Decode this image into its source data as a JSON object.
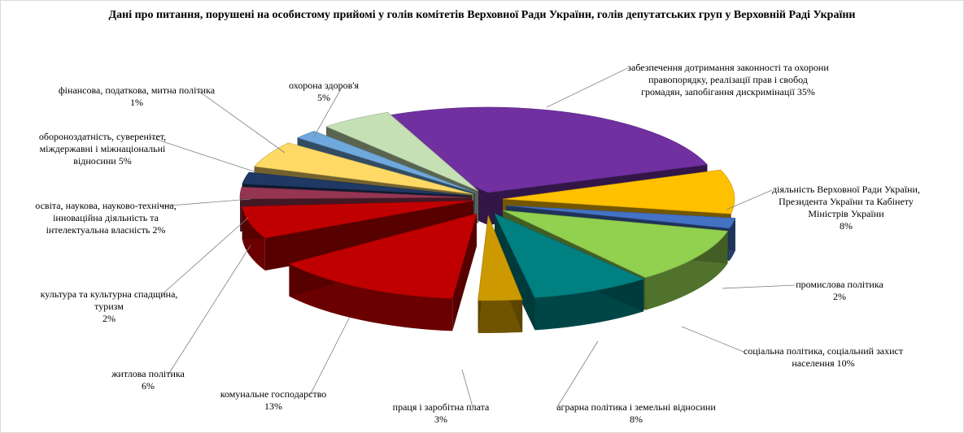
{
  "chart_data": {
    "type": "pie",
    "title": "Дані про питання, порушені на особистому прийомі у голів комітетів Верховної Ради України, голів депутатських груп у Верховній Раді України",
    "slices": [
      {
        "lines": [
          "забезпечення дотримання законності та охорони",
          "правопорядку, реалізації прав і свобод",
          "громадян, запобігання дискримінації"
        ],
        "inline_pct": true,
        "pct": "35%",
        "value": 35,
        "color": "#7030A0"
      },
      {
        "lines": [
          "діяльність Верховної Ради України,",
          "Президента України та Кабінету",
          "Міністрів України"
        ],
        "pct": "8%",
        "value": 8,
        "color": "#FFC000"
      },
      {
        "lines": [
          "промислова політика"
        ],
        "pct": "2%",
        "value": 2,
        "color": "#4472C4"
      },
      {
        "lines": [
          "соціальна політика,  соціальний захист",
          "населення"
        ],
        "inline_pct": true,
        "pct": "10%",
        "value": 10,
        "color": "#92D050"
      },
      {
        "lines": [
          "аграрна політика  і земельні відносини"
        ],
        "pct": "8%",
        "value": 8,
        "color": "#008080"
      },
      {
        "lines": [
          "праця і заробітна плата"
        ],
        "pct": "3%",
        "value": 3,
        "color": "#CC9900"
      },
      {
        "lines": [
          "комунальне господарство"
        ],
        "pct": "13%",
        "value": 13,
        "color": "#C00000"
      },
      {
        "lines": [
          "житлова політика"
        ],
        "pct": "6%",
        "value": 6,
        "color": "#C00000"
      },
      {
        "lines": [
          "культура та культурна спадщина,",
          "туризм"
        ],
        "pct": "2%",
        "value": 2,
        "color": "#953553"
      },
      {
        "lines": [
          "освіта, наукова, науково-технічна,",
          "інноваційна діяльність  та",
          "інтелектуальна власність"
        ],
        "inline_pct": true,
        "pct": "2%",
        "value": 2,
        "color": "#1F3864"
      },
      {
        "lines": [
          "обороноздатність, суверенітет,",
          "міждержавні і міжнаціональні",
          "відносини"
        ],
        "inline_pct": true,
        "pct": "5%",
        "value": 5,
        "color": "#FFD966"
      },
      {
        "lines": [
          "фінансова, податкова,  митна політика"
        ],
        "pct": "1%",
        "value": 1,
        "color": "#6FA8DC"
      },
      {
        "lines": [
          "охорона здоров'я"
        ],
        "pct": "5%",
        "value": 5,
        "color": "#C5E0B4"
      }
    ]
  }
}
